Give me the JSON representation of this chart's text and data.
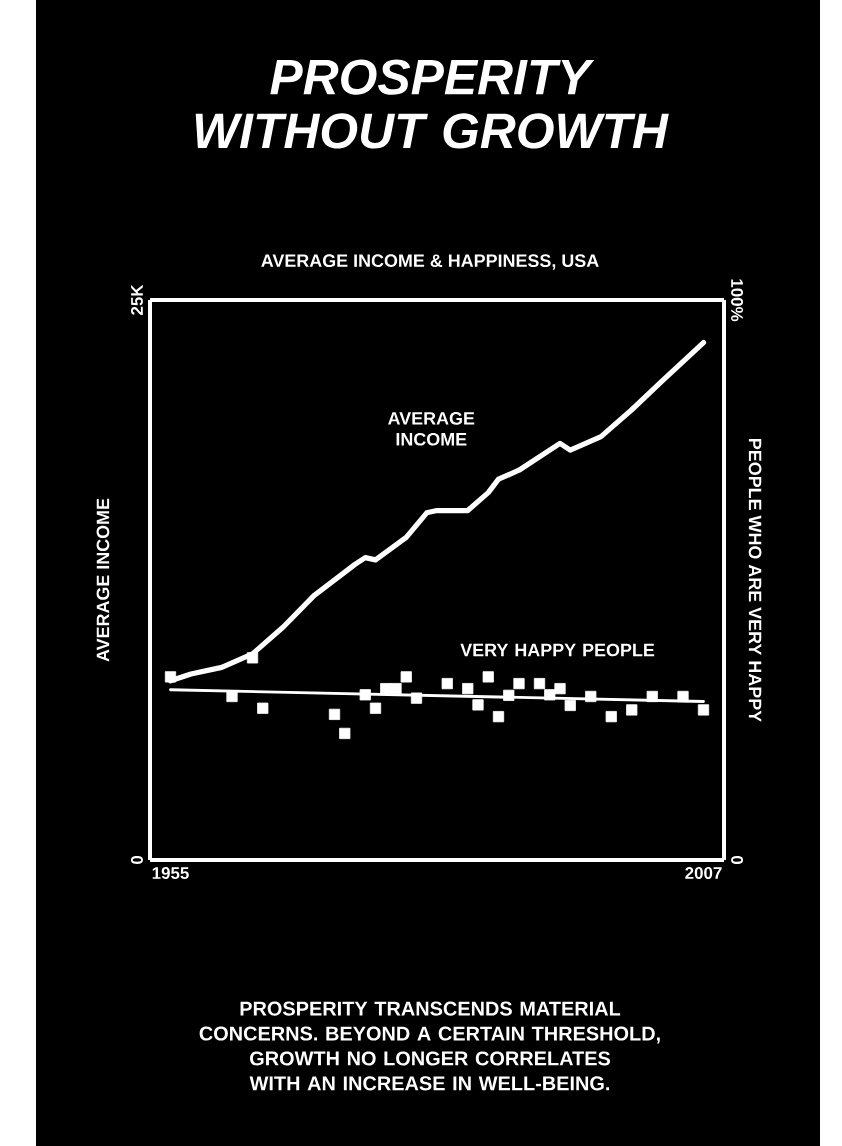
{
  "chart_data": {
    "type": "line",
    "title": "PROSPERITY WITHOUT GROWTH",
    "subtitle": "AVERAGE INCOME & HAPPINESS, USA",
    "ylabel": "AVERAGE INCOME",
    "y2label": "PEOPLE WHO ARE VERY HAPPY",
    "xlim": [
      1953,
      2009
    ],
    "xticks": [
      1955,
      2007
    ],
    "ylim": [
      0,
      25000
    ],
    "yticks": [
      0,
      {
        "value": 25000,
        "label": "25K"
      }
    ],
    "y2lim": [
      0,
      100
    ],
    "y2ticks": [
      0,
      {
        "value": 100,
        "label": "100%"
      }
    ],
    "series": [
      {
        "name": "AVERAGE INCOME",
        "color": "#ffffff",
        "x": [
          1955,
          1957,
          1960,
          1963,
          1966,
          1969,
          1973,
          1974,
          1975,
          1978,
          1980,
          1981,
          1984,
          1986,
          1987,
          1989,
          1993,
          1994,
          1997,
          2000,
          2003,
          2007
        ],
        "values": [
          8000,
          8300,
          8600,
          9200,
          10400,
          11800,
          13200,
          13500,
          13400,
          14400,
          15500,
          15600,
          15600,
          16400,
          17000,
          17400,
          18600,
          18300,
          18900,
          20100,
          21400,
          23100
        ]
      },
      {
        "name": "VERY HAPPY PEOPLE",
        "color": "#ffffff",
        "type": "scatter",
        "marker": "square",
        "axis": "y2",
        "x": [
          1955,
          1961,
          1963,
          1964,
          1971,
          1972,
          1974,
          1975,
          1976,
          1977,
          1978,
          1979,
          1982,
          1984,
          1985,
          1986,
          1987,
          1988,
          1989,
          1991,
          1992,
          1993,
          1994,
          1996,
          1998,
          2000,
          2002,
          2005,
          2007
        ],
        "values": [
          32.7,
          29.2,
          36.1,
          27.1,
          26.0,
          22.6,
          29.5,
          27.1,
          30.6,
          30.6,
          32.7,
          28.9,
          31.5,
          30.6,
          27.7,
          32.7,
          25.6,
          29.4,
          31.5,
          31.5,
          29.5,
          30.6,
          27.6,
          29.2,
          25.6,
          26.8,
          29.2,
          29.2,
          26.8
        ]
      },
      {
        "color": "#ffffff",
        "axis": "y2",
        "x": [
          1955,
          2007
        ],
        "values": [
          30.4,
          28.3
        ]
      }
    ],
    "annotations": [
      "PROSPERITY TRANSCENDS MATERIAL CONCERNS. BEYOND A CERTAIN THRESHOLD, GROWTH NO LONGER CORRELATES WITH AN INCREASE IN WELL-BEING."
    ]
  }
}
